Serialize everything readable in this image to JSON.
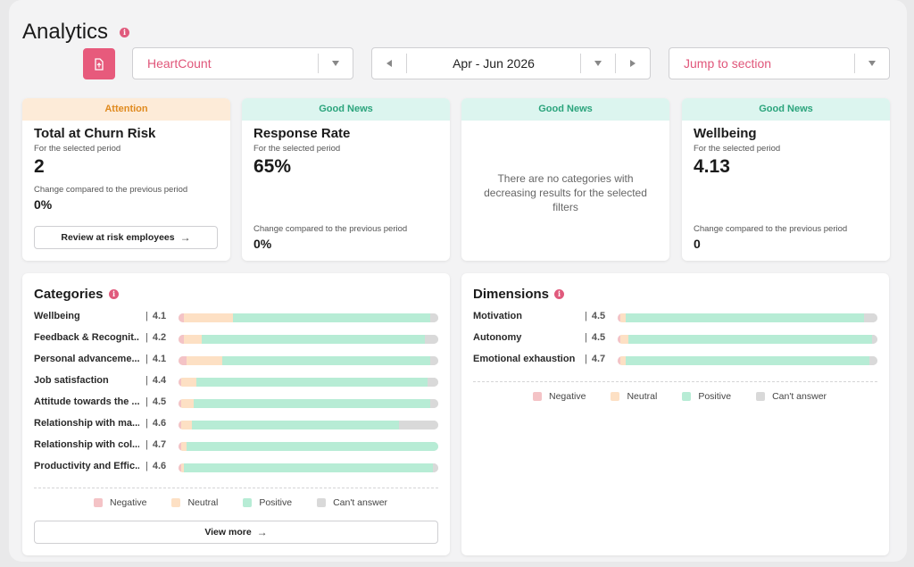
{
  "page": {
    "title": "Analytics"
  },
  "filters": {
    "company": "HeartCount",
    "period": "Apr - Jun 2026",
    "jump": "Jump to section"
  },
  "cards": {
    "churn": {
      "badge": "Attention",
      "title": "Total at Churn Risk",
      "subtitle": "For the selected period",
      "value": "2",
      "change_label": "Change compared to the previous period",
      "change": "0%",
      "button": "Review at risk employees"
    },
    "response": {
      "badge": "Good News",
      "title": "Response Rate",
      "subtitle": "For the selected period",
      "value": "65%",
      "change_label": "Change compared to the previous period",
      "change": "0%"
    },
    "empty": {
      "badge": "Good News",
      "message": "There are no categories with decreasing results for the selected filters"
    },
    "wellbeing": {
      "badge": "Good News",
      "title": "Wellbeing",
      "subtitle": "For the selected period",
      "value": "4.13",
      "change_label": "Change compared to the previous period",
      "change": "0"
    }
  },
  "categories": {
    "title": "Categories",
    "rows": [
      {
        "label": "Wellbeing",
        "score": "4.1",
        "neg": 2,
        "neu": 19,
        "pos": 76,
        "na": 3
      },
      {
        "label": "Feedback & Recognit...",
        "score": "4.2",
        "neg": 2,
        "neu": 7,
        "pos": 86,
        "na": 5
      },
      {
        "label": "Personal advanceme...",
        "score": "4.1",
        "neg": 3,
        "neu": 14,
        "pos": 80,
        "na": 3
      },
      {
        "label": "Job satisfaction",
        "score": "4.4",
        "neg": 1,
        "neu": 6,
        "pos": 89,
        "na": 4
      },
      {
        "label": "Attitude towards the ...",
        "score": "4.5",
        "neg": 1,
        "neu": 5,
        "pos": 91,
        "na": 3
      },
      {
        "label": "Relationship with ma...",
        "score": "4.6",
        "neg": 1,
        "neu": 4,
        "pos": 80,
        "na": 15
      },
      {
        "label": "Relationship with col...",
        "score": "4.7",
        "neg": 1,
        "neu": 2,
        "pos": 97,
        "na": 0
      },
      {
        "label": "Productivity and Effic...",
        "score": "4.6",
        "neg": 1,
        "neu": 1,
        "pos": 96,
        "na": 2
      }
    ],
    "view_more": "View more"
  },
  "dimensions": {
    "title": "Dimensions",
    "rows": [
      {
        "label": "Motivation",
        "score": "4.5",
        "neg": 1,
        "neu": 2,
        "pos": 92,
        "na": 5
      },
      {
        "label": "Autonomy",
        "score": "4.5",
        "neg": 1,
        "neu": 3,
        "pos": 94,
        "na": 2
      },
      {
        "label": "Emotional exhaustion",
        "score": "4.7",
        "neg": 1,
        "neu": 2,
        "pos": 94,
        "na": 3
      }
    ]
  },
  "legend": [
    {
      "label": "Negative",
      "color": "#f4c3c6"
    },
    {
      "label": "Neutral",
      "color": "#fde0c4"
    },
    {
      "label": "Positive",
      "color": "#b7ecd5"
    },
    {
      "label": "Can't answer",
      "color": "#d9d9d9"
    }
  ],
  "colors": {
    "accent": "#e75a7c",
    "attention": "#e08a1e",
    "good": "#2ba47c"
  }
}
